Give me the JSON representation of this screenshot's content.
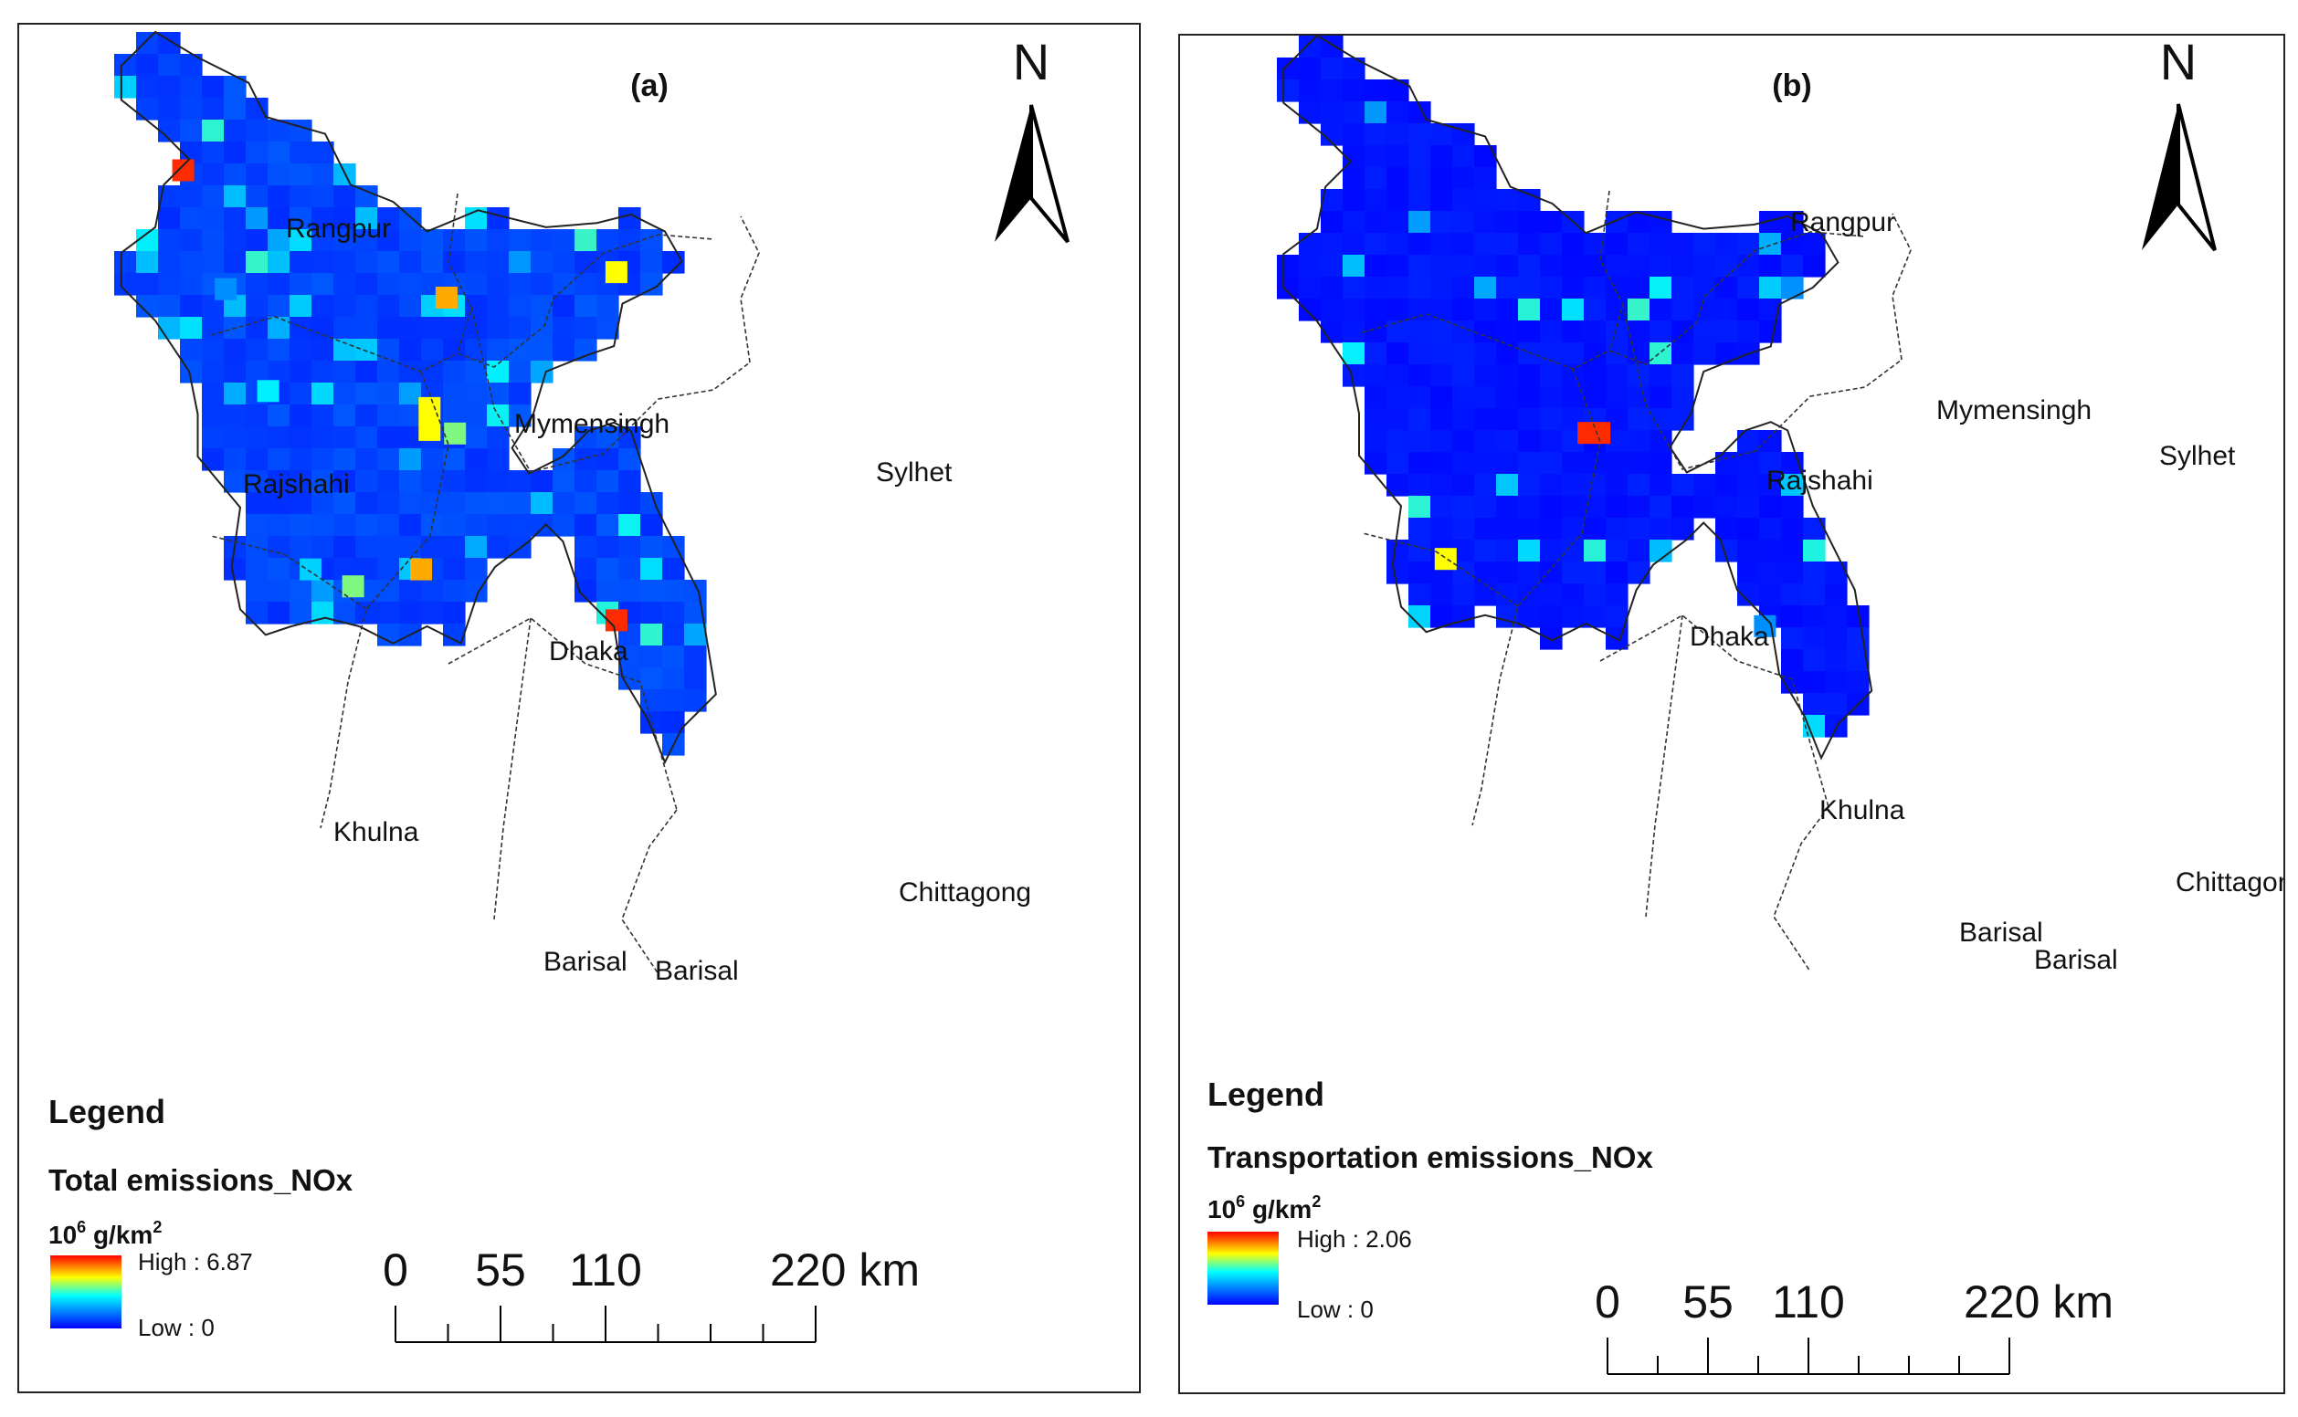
{
  "panels": [
    {
      "id": "a",
      "label": "(a)",
      "north": "N",
      "legend_title": "Legend",
      "layer_name": "Total emissions_NOx",
      "unit_base": "10",
      "unit_exp": "6",
      "unit_rest": " g/km",
      "unit_sq": "2",
      "high_label": "High : 6.87",
      "low_label": "Low : 0",
      "high_value": 6.87,
      "low_value": 0,
      "scale_ticks": [
        "0",
        "55",
        "110",
        "220 km"
      ],
      "divisions": [
        "Rangpur",
        "Rajshahi",
        "Mymensingh",
        "Sylhet",
        "Dhaka",
        "Khulna",
        "Barisal",
        "Barisal",
        "Chittagong"
      ],
      "hotspot_levels": [
        0.95,
        0.8,
        0.7,
        0.6,
        0.5,
        0.45,
        0.35
      ]
    },
    {
      "id": "b",
      "label": "(b)",
      "north": "N",
      "legend_title": "Legend",
      "layer_name": "Transportation emissions_NOx",
      "unit_base": "10",
      "unit_exp": "6",
      "unit_rest": " g/km",
      "unit_sq": "2",
      "high_label": "High : 2.06",
      "low_label": "Low : 0",
      "high_value": 2.06,
      "low_value": 0,
      "scale_ticks": [
        "0",
        "55",
        "110",
        "220 km"
      ],
      "divisions": [
        "Rangpur",
        "Rajshahi",
        "Mymensingh",
        "Sylhet",
        "Dhaka",
        "Khulna",
        "Barisal",
        "Barisal",
        "Chittagong"
      ],
      "hotspot_levels": [
        0.95,
        0.7,
        0.35,
        0.25
      ]
    }
  ],
  "colors": {
    "ramp": [
      "#ff0000",
      "#ffff00",
      "#00ffff",
      "#0000ff"
    ],
    "frame": "#222222"
  }
}
